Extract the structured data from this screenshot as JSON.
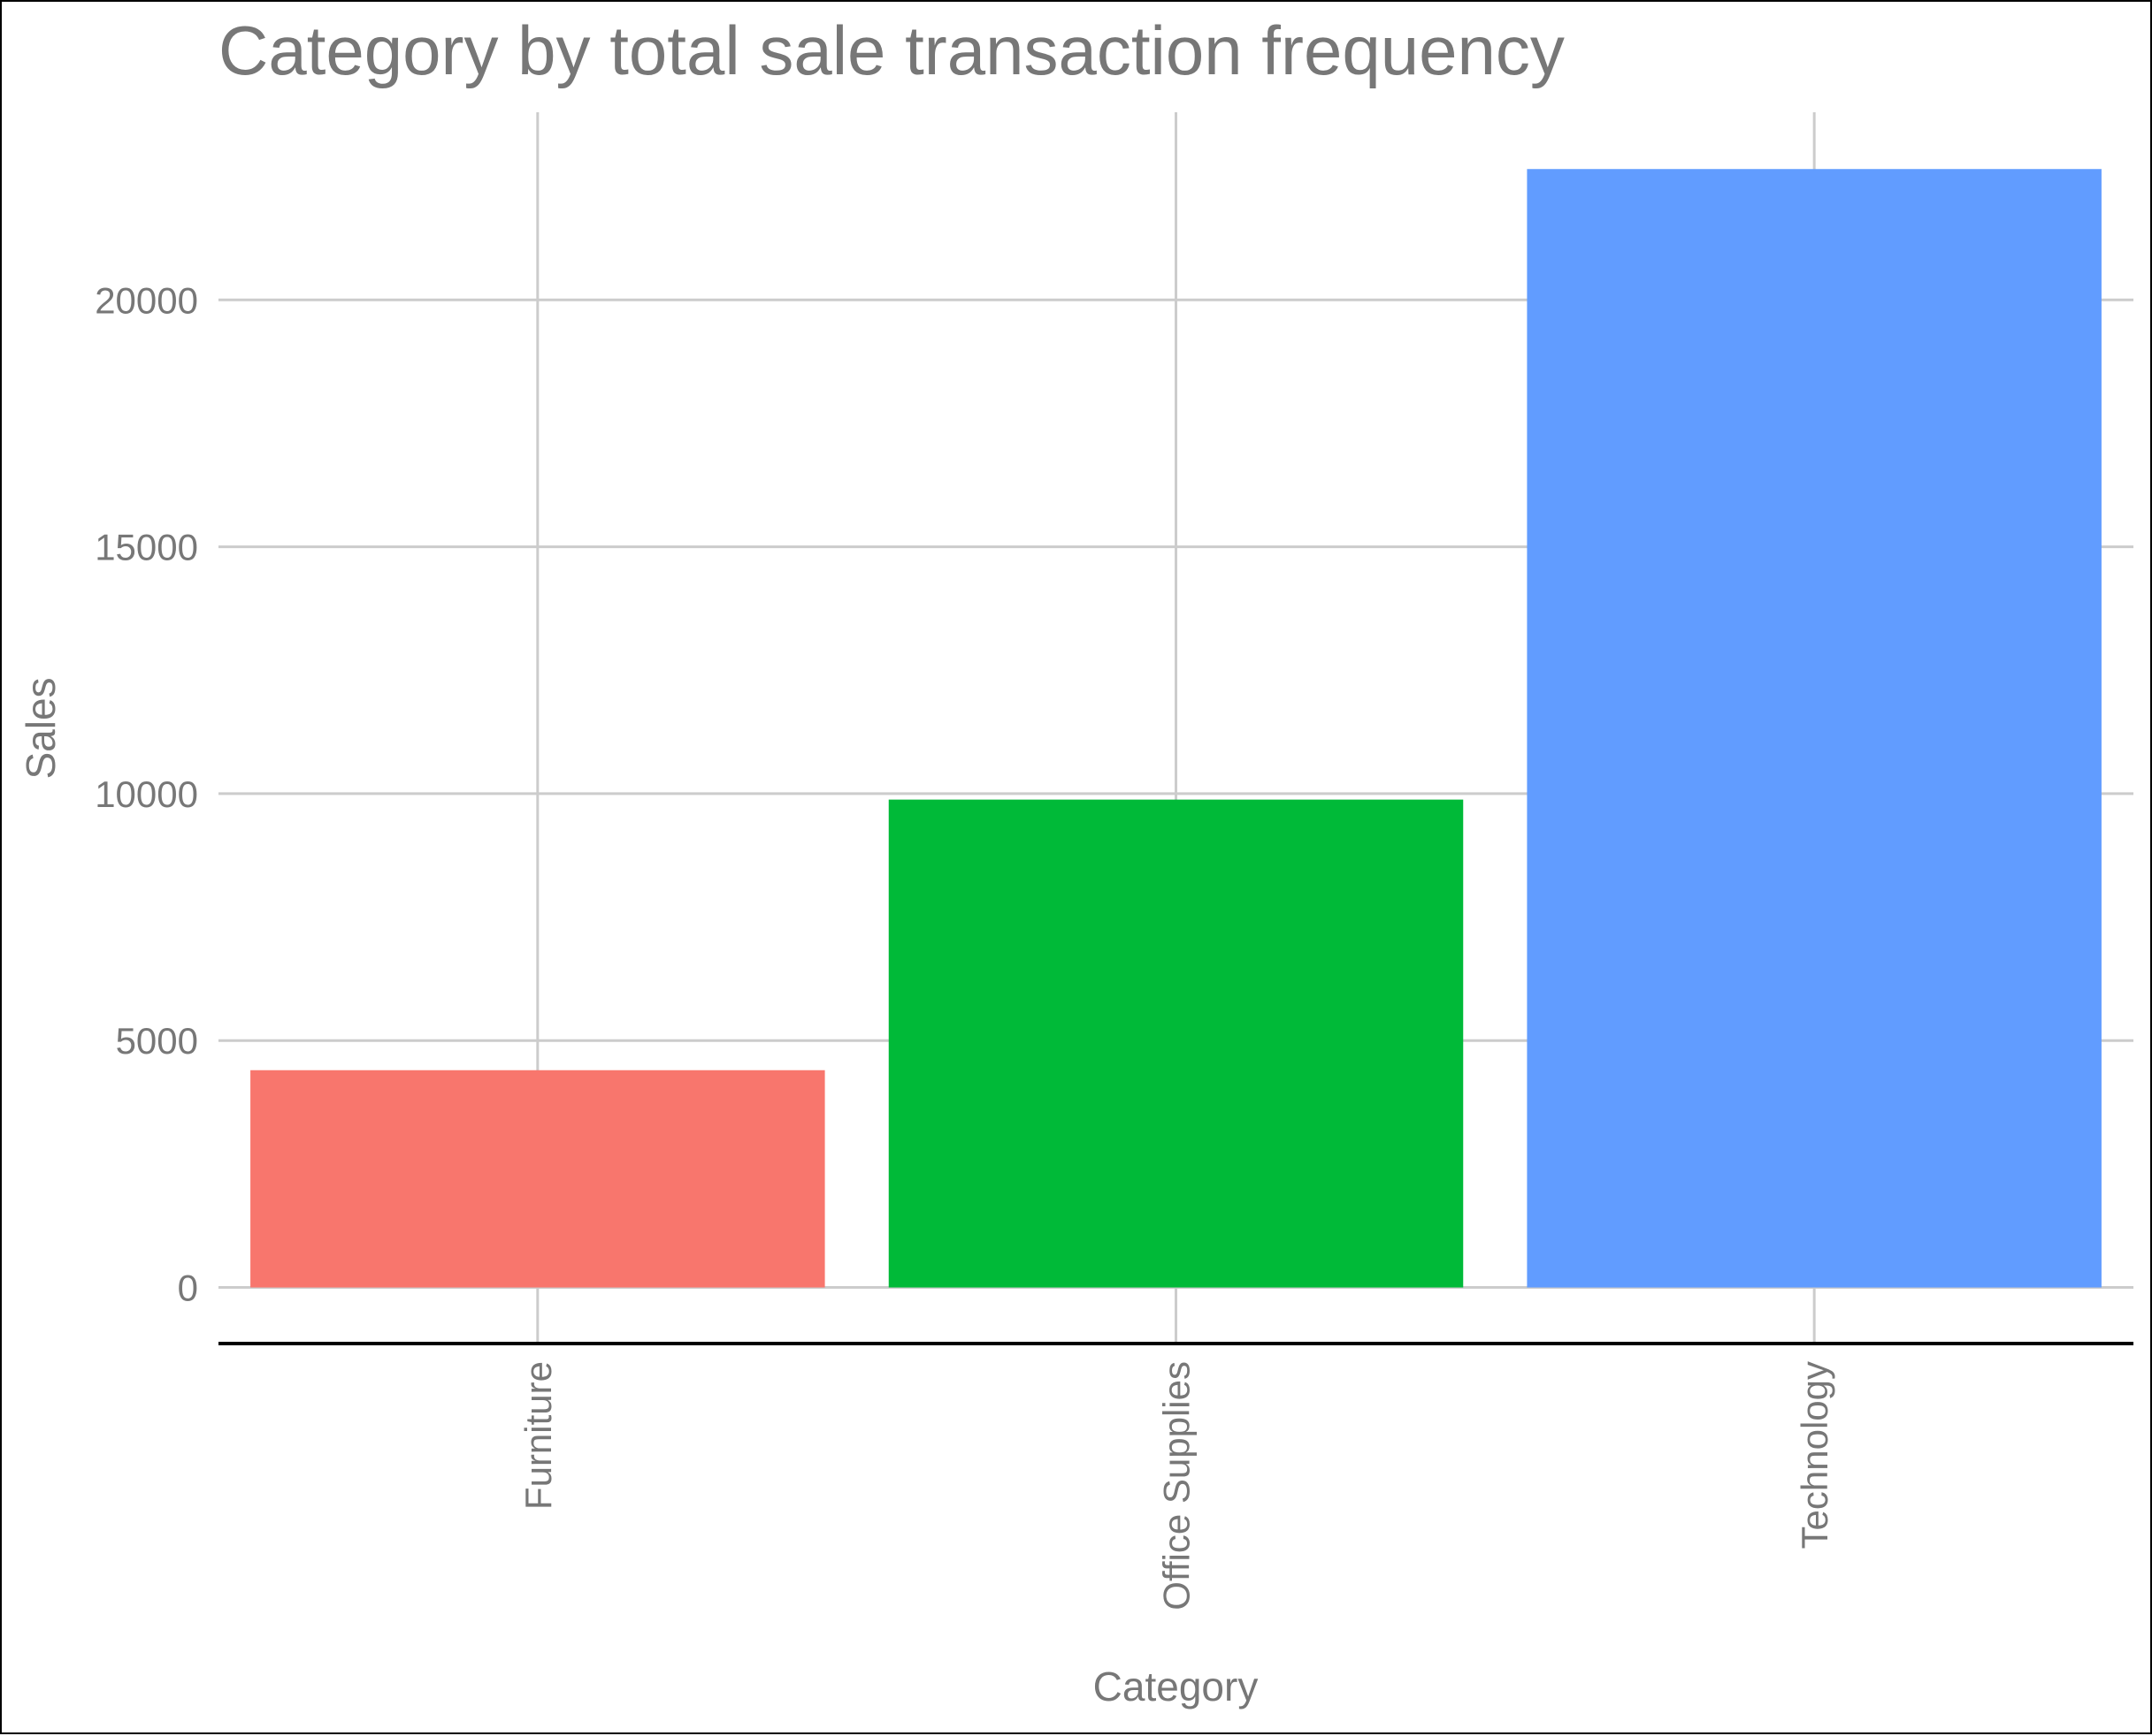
{
  "chart_data": {
    "type": "bar",
    "title": "Category by total sale transaction frequency",
    "xlabel": "Category",
    "ylabel": "Sales",
    "categories": [
      "Furniture",
      "Office Supplies",
      "Technology"
    ],
    "values": [
      4400,
      9880,
      22650
    ],
    "bar_colors": [
      "#F8766D",
      "#00BA38",
      "#619CFF"
    ],
    "yticks": [
      0,
      5000,
      10000,
      15000,
      20000
    ],
    "ylim": [
      -1100,
      23800
    ],
    "grid": true,
    "legend": "none",
    "text_color": "#777777",
    "grid_color": "#cccccc"
  }
}
